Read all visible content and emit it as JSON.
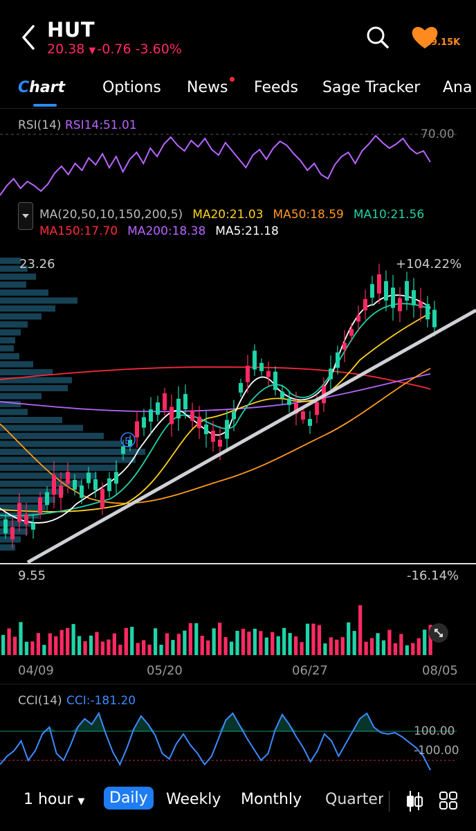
{
  "header": {
    "ticker": "HUT",
    "price": "20.38",
    "change": "-0.76",
    "change_pct": "-3.60%",
    "follow_count": "29.15K"
  },
  "tabs": [
    {
      "label": "Chart"
    },
    {
      "label": "Options"
    },
    {
      "label": "News"
    },
    {
      "label": "Feeds"
    },
    {
      "label": "Sage Tracker"
    },
    {
      "label": "Ana"
    }
  ],
  "rsi": {
    "label": "RSI(14)",
    "value": "RSI14:51.01",
    "level": "70.00"
  },
  "ma": {
    "label": "MA(20,50,10,150,200,5)",
    "items": [
      {
        "text": "MA20:21.03",
        "color": "#ffd21f"
      },
      {
        "text": "MA50:18.59",
        "color": "#ff9a1f"
      },
      {
        "text": "MA10:21.56",
        "color": "#20d3a8"
      },
      {
        "text": "MA150:17.70",
        "color": "#ff2a3a"
      },
      {
        "text": "MA200:18.38",
        "color": "#b866ff"
      },
      {
        "text": "MA5:21.18",
        "color": "#ffffff"
      }
    ]
  },
  "price_chart": {
    "high": "23.26",
    "high_pct": "+104.22%",
    "low": "9.55",
    "low_pct": "-16.14%"
  },
  "dates": [
    "04/09",
    "05/20",
    "06/27",
    "08/05"
  ],
  "cci": {
    "label": "CCI(14)",
    "value": "CCI:-181.20",
    "upper": "100.00",
    "lower": "-100.00"
  },
  "bottom_bar": {
    "interval": "1 hour",
    "tabs": [
      "Daily",
      "Weekly",
      "Monthly",
      "Quarter"
    ]
  },
  "colors": {
    "up": "#20d3a8",
    "down": "#ff2a63",
    "accent": "#1f7cf2"
  }
}
